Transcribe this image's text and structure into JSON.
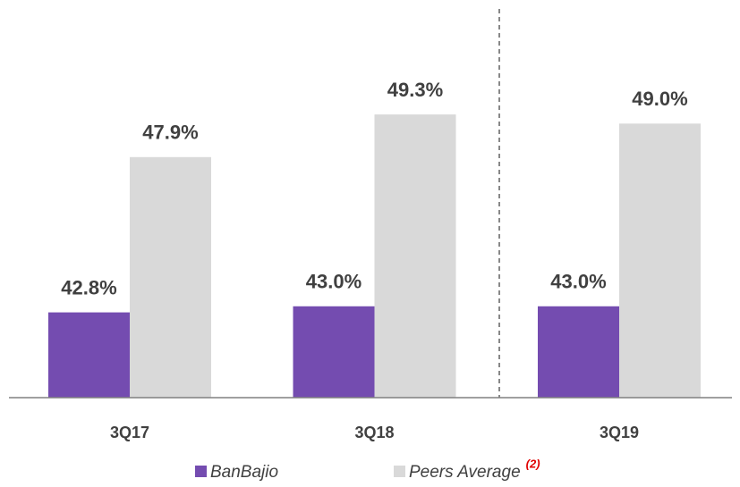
{
  "chart_data": {
    "type": "bar",
    "categories": [
      "3Q17",
      "3Q18",
      "3Q19"
    ],
    "series": [
      {
        "name": "BanBajio",
        "color": "#744cb0",
        "values": [
          42.8,
          43.0,
          43.0
        ],
        "value_labels": [
          "42.8%",
          "43.0%",
          "43.0%"
        ]
      },
      {
        "name": "Peers Average",
        "color": "#d9d9d9",
        "values": [
          47.9,
          49.3,
          49.0
        ],
        "value_labels": [
          "47.9%",
          "49.3%",
          "49.0%"
        ],
        "legend_note": "(2)"
      }
    ],
    "ylim": [
      40,
      53
    ]
  }
}
